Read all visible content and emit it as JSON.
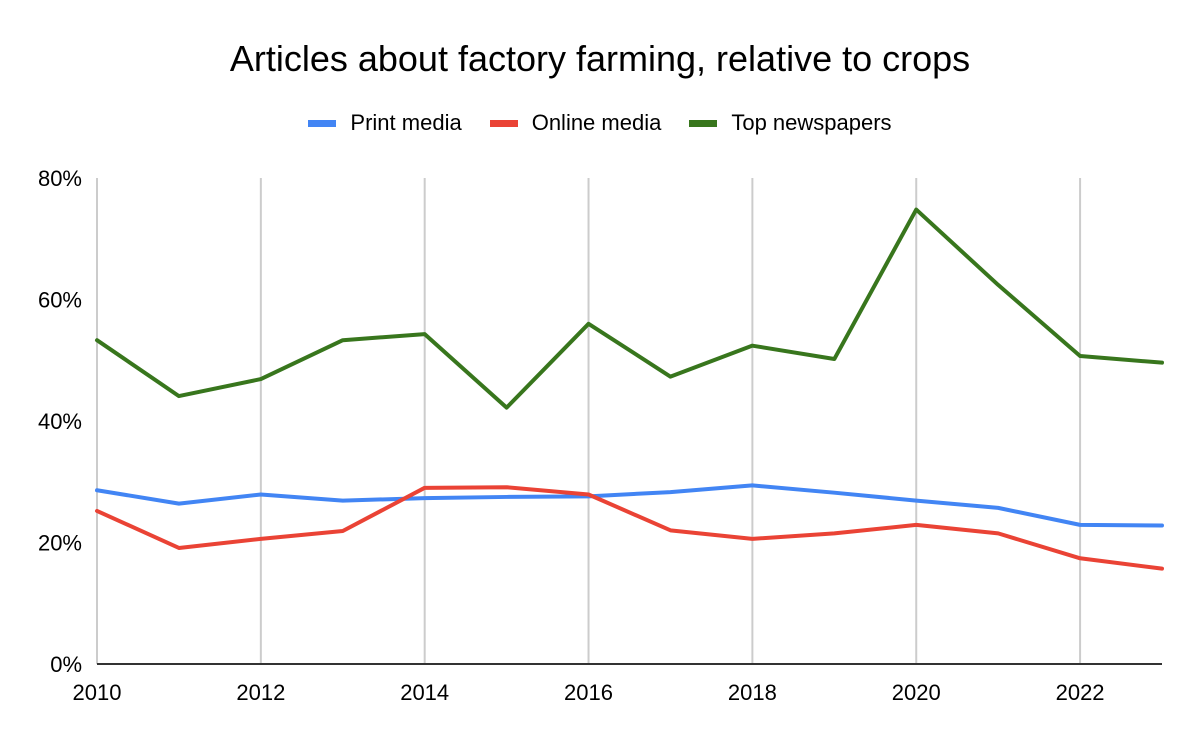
{
  "chart_data": {
    "type": "line",
    "title": "Articles about factory farming, relative to crops",
    "xlabel": "",
    "ylabel": "",
    "x": [
      2010,
      2011,
      2012,
      2013,
      2014,
      2015,
      2016,
      2017,
      2018,
      2019,
      2020,
      2021,
      2022,
      2023
    ],
    "x_ticks": [
      "2010",
      "2012",
      "2014",
      "2016",
      "2018",
      "2020",
      "2022"
    ],
    "y_ticks": [
      "0%",
      "20%",
      "40%",
      "60%",
      "80%"
    ],
    "ylim": [
      0,
      80
    ],
    "grid": "vertical",
    "legend": "top-center",
    "series": [
      {
        "name": "Print media",
        "color": "#4285f4",
        "values": [
          28.6,
          26.4,
          27.9,
          26.9,
          27.3,
          27.5,
          27.6,
          28.3,
          29.4,
          28.2,
          26.9,
          25.7,
          22.9,
          22.8
        ]
      },
      {
        "name": "Online media",
        "color": "#ea4335",
        "values": [
          25.2,
          19.1,
          20.6,
          21.9,
          29.0,
          29.1,
          27.9,
          22.0,
          20.6,
          21.5,
          22.9,
          21.5,
          17.4,
          15.7
        ]
      },
      {
        "name": "Top newspapers",
        "color": "#38761d",
        "values": [
          53.3,
          44.1,
          46.9,
          53.3,
          54.3,
          42.2,
          56.0,
          47.3,
          52.4,
          50.2,
          74.8,
          62.4,
          50.7,
          49.6
        ]
      }
    ]
  }
}
